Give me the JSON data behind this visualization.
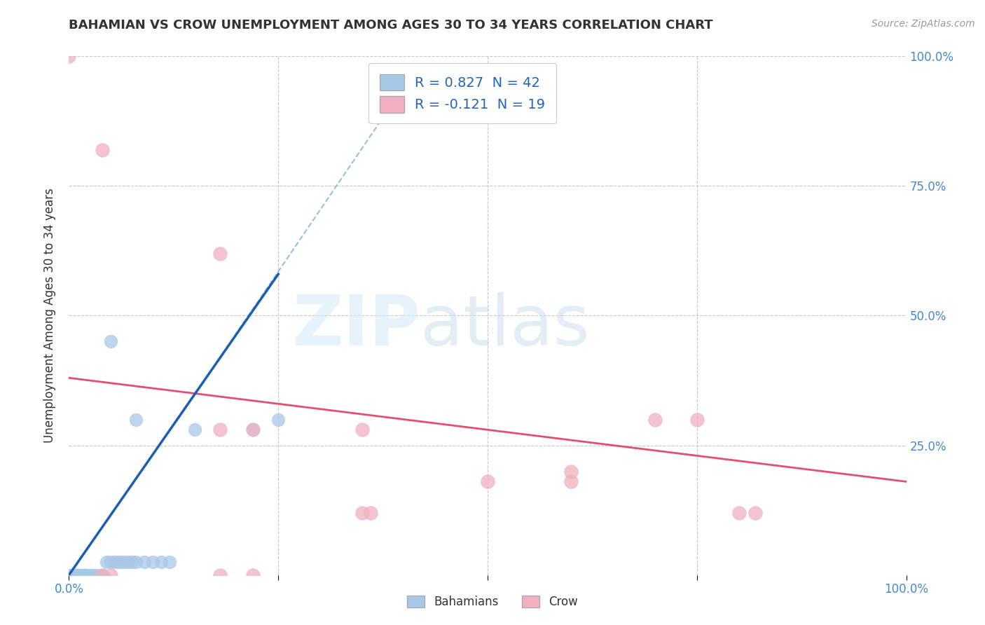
{
  "title": "BAHAMIAN VS CROW UNEMPLOYMENT AMONG AGES 30 TO 34 YEARS CORRELATION CHART",
  "source": "Source: ZipAtlas.com",
  "ylabel": "Unemployment Among Ages 30 to 34 years",
  "xlabel": "",
  "xlim": [
    0,
    1.0
  ],
  "ylim": [
    0,
    1.0
  ],
  "xtick_positions": [
    0.0,
    0.25,
    0.5,
    0.75,
    1.0
  ],
  "ytick_positions": [
    0.0,
    0.25,
    0.5,
    0.75,
    1.0
  ],
  "xticklabels": [
    "0.0%",
    "",
    "",
    "",
    "100.0%"
  ],
  "yticklabels_right": [
    "",
    "25.0%",
    "50.0%",
    "75.0%",
    "100.0%"
  ],
  "background_color": "#ffffff",
  "grid_color": "#c8c8c8",
  "blue_color": "#a8c8e8",
  "pink_color": "#f0b0c0",
  "blue_line_color": "#1a5fb0",
  "pink_line_color": "#e05070",
  "blue_scatter": [
    [
      0.0,
      0.0
    ],
    [
      0.002,
      0.0
    ],
    [
      0.003,
      0.0
    ],
    [
      0.004,
      0.0
    ],
    [
      0.005,
      0.0
    ],
    [
      0.006,
      0.0
    ],
    [
      0.007,
      0.0
    ],
    [
      0.008,
      0.0
    ],
    [
      0.009,
      0.0
    ],
    [
      0.01,
      0.0
    ],
    [
      0.011,
      0.0
    ],
    [
      0.012,
      0.0
    ],
    [
      0.013,
      0.0
    ],
    [
      0.015,
      0.0
    ],
    [
      0.016,
      0.0
    ],
    [
      0.017,
      0.0
    ],
    [
      0.018,
      0.0
    ],
    [
      0.019,
      0.0
    ],
    [
      0.02,
      0.0
    ],
    [
      0.022,
      0.0
    ],
    [
      0.025,
      0.0
    ],
    [
      0.027,
      0.0
    ],
    [
      0.03,
      0.0
    ],
    [
      0.035,
      0.0
    ],
    [
      0.04,
      0.0
    ],
    [
      0.045,
      0.025
    ],
    [
      0.05,
      0.025
    ],
    [
      0.055,
      0.025
    ],
    [
      0.06,
      0.025
    ],
    [
      0.065,
      0.025
    ],
    [
      0.07,
      0.025
    ],
    [
      0.075,
      0.025
    ],
    [
      0.08,
      0.025
    ],
    [
      0.09,
      0.025
    ],
    [
      0.1,
      0.025
    ],
    [
      0.11,
      0.025
    ],
    [
      0.12,
      0.025
    ],
    [
      0.05,
      0.45
    ],
    [
      0.08,
      0.3
    ],
    [
      0.15,
      0.28
    ],
    [
      0.22,
      0.28
    ],
    [
      0.25,
      0.3
    ]
  ],
  "pink_scatter": [
    [
      0.0,
      1.0
    ],
    [
      0.04,
      0.82
    ],
    [
      0.18,
      0.62
    ],
    [
      0.18,
      0.28
    ],
    [
      0.22,
      0.28
    ],
    [
      0.35,
      0.28
    ],
    [
      0.6,
      0.2
    ],
    [
      0.7,
      0.3
    ],
    [
      0.75,
      0.3
    ],
    [
      0.8,
      0.12
    ],
    [
      0.82,
      0.12
    ],
    [
      0.35,
      0.12
    ],
    [
      0.36,
      0.12
    ],
    [
      0.6,
      0.18
    ],
    [
      0.04,
      0.0
    ],
    [
      0.05,
      0.0
    ],
    [
      0.5,
      0.18
    ],
    [
      0.18,
      0.0
    ],
    [
      0.22,
      0.0
    ]
  ],
  "blue_trendline_solid": [
    [
      0.0,
      0.0
    ],
    [
      0.25,
      0.58
    ]
  ],
  "blue_trendline_dashed": [
    [
      0.0,
      0.0
    ],
    [
      0.37,
      0.87
    ]
  ],
  "pink_trendline": [
    [
      0.0,
      0.38
    ],
    [
      1.0,
      0.18
    ]
  ],
  "legend_labels": [
    "R = 0.827  N = 42",
    "R = -0.121  N = 19"
  ],
  "bottom_labels": [
    "Bahamians",
    "Crow"
  ]
}
